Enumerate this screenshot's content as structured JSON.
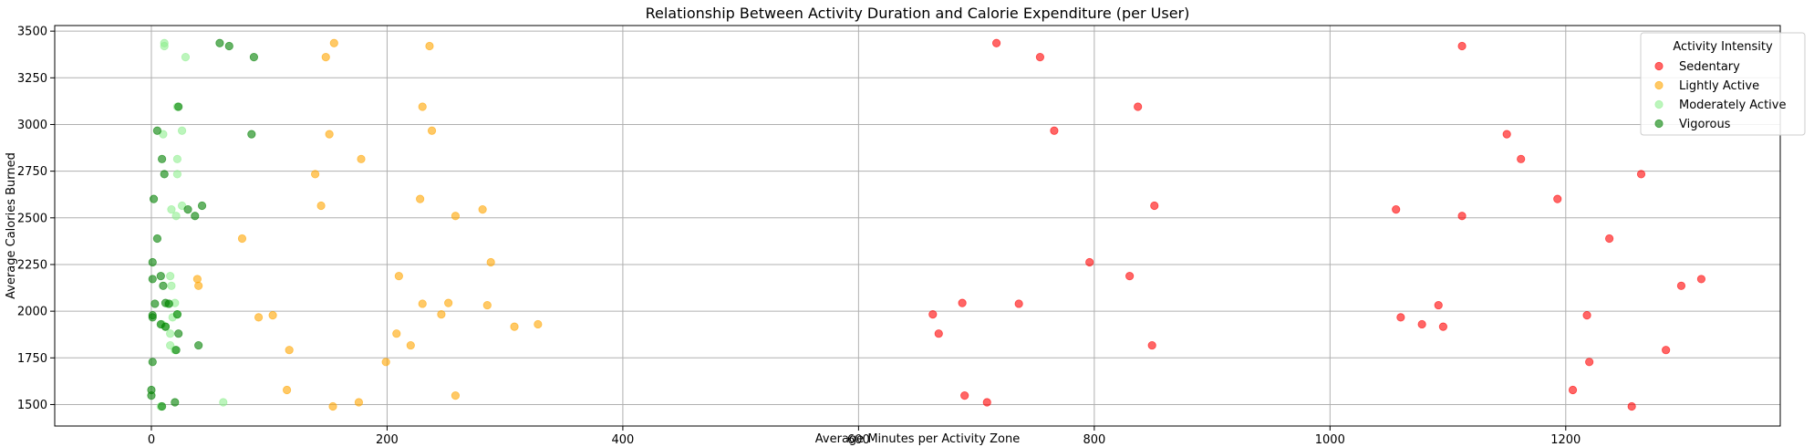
{
  "chart_data": {
    "type": "scatter",
    "title": "Relationship Between Activity Duration and Calorie Expenditure (per User)",
    "xlabel": "Average Minutes per Activity Zone",
    "ylabel": "Average Calories Burned",
    "xlim": [
      -82,
      1382
    ],
    "ylim": [
      1385,
      3530
    ],
    "xticks": [
      0,
      200,
      400,
      600,
      800,
      1000,
      1200
    ],
    "yticks": [
      1500,
      1750,
      2000,
      2250,
      2500,
      2750,
      3000,
      3250,
      3500
    ],
    "xtick_labels": [
      "0",
      "200",
      "400",
      "600",
      "800",
      "1000",
      "1200"
    ],
    "ytick_labels": [
      "1500",
      "1750",
      "2000",
      "2250",
      "2500",
      "2750",
      "3000",
      "3250",
      "3500"
    ],
    "grid": true,
    "legend": {
      "title": "Activity Intensity",
      "placement": "top-right"
    },
    "series": [
      {
        "name": "Sedentary",
        "color": "#ff0000",
        "points": [
          [
            717,
            3436
          ],
          [
            754,
            3361
          ],
          [
            766,
            2967
          ],
          [
            837,
            3095
          ],
          [
            851,
            2565
          ],
          [
            796,
            2262
          ],
          [
            830,
            2188
          ],
          [
            736,
            2040
          ],
          [
            688,
            2044
          ],
          [
            663,
            1983
          ],
          [
            668,
            1880
          ],
          [
            849,
            1817
          ],
          [
            690,
            1548
          ],
          [
            709,
            1512
          ],
          [
            1112,
            3420
          ],
          [
            1150,
            2948
          ],
          [
            1162,
            2815
          ],
          [
            1264,
            2734
          ],
          [
            1193,
            2601
          ],
          [
            1056,
            2545
          ],
          [
            1112,
            2510
          ],
          [
            1237,
            2389
          ],
          [
            1315,
            2172
          ],
          [
            1298,
            2136
          ],
          [
            1092,
            2032
          ],
          [
            1218,
            1978
          ],
          [
            1060,
            1967
          ],
          [
            1078,
            1930
          ],
          [
            1096,
            1917
          ],
          [
            1285,
            1792
          ],
          [
            1220,
            1728
          ],
          [
            1206,
            1578
          ],
          [
            1256,
            1490
          ]
        ]
      },
      {
        "name": "Lightly Active",
        "color": "#ffa500",
        "points": [
          [
            155,
            3436
          ],
          [
            148,
            3361
          ],
          [
            236,
            3420
          ],
          [
            230,
            3095
          ],
          [
            238,
            2967
          ],
          [
            151,
            2948
          ],
          [
            178,
            2815
          ],
          [
            139,
            2734
          ],
          [
            228,
            2601
          ],
          [
            144,
            2565
          ],
          [
            281,
            2545
          ],
          [
            258,
            2510
          ],
          [
            77,
            2389
          ],
          [
            288,
            2262
          ],
          [
            210,
            2188
          ],
          [
            39,
            2172
          ],
          [
            40,
            2136
          ],
          [
            230,
            2040
          ],
          [
            252,
            2044
          ],
          [
            285,
            2032
          ],
          [
            246,
            1983
          ],
          [
            103,
            1978
          ],
          [
            91,
            1967
          ],
          [
            328,
            1930
          ],
          [
            308,
            1917
          ],
          [
            208,
            1880
          ],
          [
            220,
            1817
          ],
          [
            117,
            1792
          ],
          [
            199,
            1728
          ],
          [
            115,
            1578
          ],
          [
            258,
            1548
          ],
          [
            176,
            1512
          ],
          [
            154,
            1490
          ]
        ]
      },
      {
        "name": "Moderately Active",
        "color": "#90ee90",
        "points": [
          [
            11,
            3436
          ],
          [
            11,
            3420
          ],
          [
            29,
            3361
          ],
          [
            22,
            3095
          ],
          [
            26,
            2967
          ],
          [
            10,
            2948
          ],
          [
            22,
            2815
          ],
          [
            22,
            2734
          ],
          [
            26,
            2565
          ],
          [
            17,
            2545
          ],
          [
            21,
            2510
          ],
          [
            16,
            2188
          ],
          [
            17,
            2136
          ],
          [
            20,
            2044
          ],
          [
            14,
            2040
          ],
          [
            22,
            1983
          ],
          [
            18,
            1967
          ],
          [
            12,
            1917
          ],
          [
            9,
            1930
          ],
          [
            16,
            1880
          ],
          [
            16,
            1817
          ],
          [
            20,
            1792
          ],
          [
            61,
            1512
          ],
          [
            8,
            1490
          ]
        ]
      },
      {
        "name": "Vigorous",
        "color": "#008000",
        "points": [
          [
            58,
            3436
          ],
          [
            66,
            3420
          ],
          [
            87,
            3361
          ],
          [
            23,
            3095
          ],
          [
            5,
            2967
          ],
          [
            85,
            2948
          ],
          [
            9,
            2815
          ],
          [
            11,
            2734
          ],
          [
            2,
            2601
          ],
          [
            43,
            2565
          ],
          [
            31,
            2545
          ],
          [
            37,
            2510
          ],
          [
            5,
            2389
          ],
          [
            1,
            2262
          ],
          [
            8,
            2188
          ],
          [
            1,
            2172
          ],
          [
            10,
            2136
          ],
          [
            3,
            2040
          ],
          [
            12,
            2044
          ],
          [
            15,
            2040
          ],
          [
            1,
            1978
          ],
          [
            22,
            1983
          ],
          [
            1,
            1967
          ],
          [
            8,
            1930
          ],
          [
            12,
            1917
          ],
          [
            23,
            1880
          ],
          [
            40,
            1817
          ],
          [
            21,
            1792
          ],
          [
            1,
            1728
          ],
          [
            0,
            1578
          ],
          [
            0,
            1548
          ],
          [
            20,
            1512
          ],
          [
            9,
            1490
          ]
        ]
      }
    ]
  }
}
